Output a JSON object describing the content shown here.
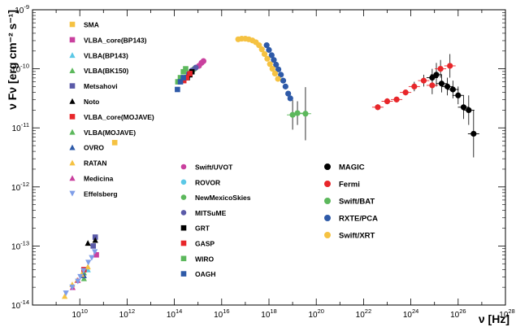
{
  "chart_data": {
    "type": "scatter",
    "xlabel": "ν [Hz]",
    "ylabel": "ν Fν [erg cm⁻² s⁻¹]",
    "xscale": "log",
    "yscale": "log",
    "xlim": [
      100000000.0,
      1e+28
    ],
    "ylim": [
      1e-14,
      1e-09
    ],
    "x_ticks": [
      "10^10",
      "10^12",
      "10^14",
      "10^16",
      "10^18",
      "10^20",
      "10^22",
      "10^24",
      "10^26",
      "10^28"
    ],
    "y_ticks": [
      "10^-14",
      "10^-13",
      "10^-12",
      "10^-11",
      "10^-10",
      "10^-9"
    ],
    "legend_left_placement": "top-left",
    "legend_mid_placement": "bottom-center",
    "legend_right_placement": "bottom-right",
    "series": [
      {
        "name": "SMA",
        "color": "#f5c242",
        "marker": "square",
        "points": [
          [
            300000000000.0,
            -11.25
          ]
        ]
      },
      {
        "name": "VLBA_core(BP143)",
        "color": "#c9409e",
        "marker": "square",
        "points": [
          [
            50000000000.0,
            -13.15
          ]
        ]
      },
      {
        "name": "VLBA(BP143)",
        "color": "#5bc8e6",
        "marker": "triangle-up",
        "points": [
          [
            22000000000.0,
            -13.4
          ]
        ]
      },
      {
        "name": "VLBA(BK150)",
        "color": "#5cb85c",
        "marker": "triangle-up",
        "points": [
          [
            15000000000.0,
            -13.45
          ]
        ]
      },
      {
        "name": "Metsahovi",
        "color": "#5a5aa8",
        "marker": "square",
        "points": [
          [
            37000000000.0,
            -13.0
          ],
          [
            45000000000.0,
            -12.85
          ]
        ]
      },
      {
        "name": "Noto",
        "color": "#000000",
        "marker": "triangle-up",
        "points": [
          [
            22000000000.0,
            -12.95
          ],
          [
            45000000000.0,
            -12.9
          ]
        ]
      },
      {
        "name": "VLBA_core(MOJAVE)",
        "color": "#e8262a",
        "marker": "square",
        "points": [
          [
            15000000000.0,
            -13.4
          ]
        ]
      },
      {
        "name": "VLBA(MOJAVE)",
        "color": "#5cb85c",
        "marker": "triangle-up",
        "points": [
          [
            15000000000.0,
            -13.55
          ]
        ]
      },
      {
        "name": "OVRO",
        "color": "#2e5aa8",
        "marker": "triangle-up",
        "points": [
          [
            15000000000.0,
            -13.5
          ]
        ]
      },
      {
        "name": "RATAN",
        "color": "#f5c242",
        "marker": "triangle-up",
        "points": [
          [
            2300000000.0,
            -13.85
          ],
          [
            4800000000.0,
            -13.65
          ],
          [
            7700000000.0,
            -13.58
          ],
          [
            12000000000.0,
            -13.48
          ],
          [
            22000000000.0,
            -13.35
          ]
        ]
      },
      {
        "name": "Medicina",
        "color": "#c9409e",
        "marker": "triangle-up",
        "points": [
          [
            5000000000.0,
            -13.7
          ],
          [
            8300000000.0,
            -13.58
          ]
        ]
      },
      {
        "name": "Effelsberg",
        "color": "#7f9ee8",
        "marker": "triangle-down",
        "points": [
          [
            2600000000.0,
            -13.8
          ],
          [
            4800000000.0,
            -13.7
          ],
          [
            8300000000.0,
            -13.6
          ],
          [
            10500000000.0,
            -13.52
          ],
          [
            14500000000.0,
            -13.42
          ],
          [
            23000000000.0,
            -13.28
          ],
          [
            32000000000.0,
            -13.2
          ],
          [
            43000000000.0,
            -13.1
          ]
        ]
      },
      {
        "name": "Swift/UVOT",
        "color": "#c9409e",
        "marker": "circle",
        "points": [
          [
            1100000000000000.0,
            -9.95
          ],
          [
            1400000000000000.0,
            -9.9
          ],
          [
            1700000000000000.0,
            -9.87
          ]
        ]
      },
      {
        "name": "ROVOR",
        "color": "#5bc8e6",
        "marker": "circle",
        "points": [
          [
            450000000000000.0,
            -10.1
          ]
        ]
      },
      {
        "name": "NewMexicoSkies",
        "color": "#5cb85c",
        "marker": "circle",
        "points": [
          [
            550000000000000.0,
            -10.05
          ],
          [
            700000000000000.0,
            -10.0
          ]
        ]
      },
      {
        "name": "MITSuME",
        "color": "#5a5aa8",
        "marker": "circle",
        "points": [
          [
            400000000000000.0,
            -10.08
          ],
          [
            550000000000000.0,
            -10.03
          ],
          [
            800000000000000.0,
            -9.98
          ]
        ]
      },
      {
        "name": "GRT",
        "color": "#000000",
        "marker": "square",
        "points": [
          [
            350000000000000.0,
            -10.15
          ],
          [
            450000000000000.0,
            -10.1
          ],
          [
            550000000000000.0,
            -10.05
          ]
        ]
      },
      {
        "name": "GASP",
        "color": "#e8262a",
        "marker": "square",
        "points": [
          [
            250000000000000.0,
            -10.2
          ],
          [
            330000000000000.0,
            -10.15
          ],
          [
            450000000000000.0,
            -10.08
          ]
        ]
      },
      {
        "name": "WIRO",
        "color": "#5cb85c",
        "marker": "square",
        "points": [
          [
            140000000000000.0,
            -10.22
          ],
          [
            180000000000000.0,
            -10.15
          ],
          [
            240000000000000.0,
            -10.05
          ],
          [
            300000000000000.0,
            -10.0
          ]
        ]
      },
      {
        "name": "OAGH",
        "color": "#2e5aa8",
        "marker": "square",
        "points": [
          [
            135000000000000.0,
            -10.35
          ],
          [
            180000000000000.0,
            -10.22
          ],
          [
            240000000000000.0,
            -10.15
          ]
        ]
      },
      {
        "name": "MAGIC",
        "color": "#000000",
        "marker": "circle",
        "points": [
          [
            8e+24,
            -10.15,
            0.15
          ],
          [
            1.2e+25,
            -10.1,
            0.2
          ],
          [
            2e+25,
            -10.25,
            0.15
          ],
          [
            3.5e+25,
            -10.3,
            0.15
          ],
          [
            6e+25,
            -10.35,
            0.15
          ],
          [
            1e+26,
            -10.45,
            0.15
          ],
          [
            1.7e+26,
            -10.65,
            0.2
          ],
          [
            2.8e+26,
            -10.7,
            0.25
          ],
          [
            4.5e+26,
            -11.1,
            0.4
          ]
        ]
      },
      {
        "name": "Fermi",
        "color": "#e8262a",
        "marker": "circle",
        "points": [
          [
            4e+22,
            -10.65,
            0.05
          ],
          [
            1e+23,
            -10.55,
            0.05
          ],
          [
            2.5e+23,
            -10.52,
            0.05
          ],
          [
            6e+23,
            -10.4,
            0.05
          ],
          [
            1.4e+24,
            -10.3,
            0.08
          ],
          [
            3.5e+24,
            -10.2,
            0.1
          ],
          [
            8e+24,
            -10.28,
            0.15
          ],
          [
            1.8e+25,
            -10.0,
            0.15
          ],
          [
            4.5e+25,
            -9.95,
            0.2
          ]
        ]
      },
      {
        "name": "Swift/BAT",
        "color": "#5cb85c",
        "marker": "circle",
        "points": [
          [
            1e+19,
            -10.78,
            0.25
          ],
          [
            1.6e+19,
            -10.75,
            0.2
          ],
          [
            3.5e+19,
            -10.76,
            0.45
          ]
        ]
      },
      {
        "name": "RXTE/PCA",
        "color": "#2e5aa8",
        "marker": "circle",
        "points": [
          [
            8e+17,
            -9.6
          ],
          [
            1e+18,
            -9.68
          ],
          [
            1.3e+18,
            -9.77
          ],
          [
            1.6e+18,
            -9.85
          ],
          [
            2e+18,
            -9.93
          ],
          [
            2.5e+18,
            -10.01
          ],
          [
            3.2e+18,
            -10.1
          ],
          [
            4e+18,
            -10.2
          ],
          [
            5e+18,
            -10.3
          ],
          [
            6.5e+18,
            -10.42
          ],
          [
            8e+18,
            -10.5
          ]
        ]
      },
      {
        "name": "Swift/XRT",
        "color": "#f5c242",
        "marker": "circle",
        "points": [
          [
            5e+16,
            -9.5
          ],
          [
            7e+16,
            -9.49
          ],
          [
            1e+17,
            -9.49
          ],
          [
            1.4e+17,
            -9.5
          ],
          [
            2e+17,
            -9.52
          ],
          [
            2.8e+17,
            -9.55
          ],
          [
            3.8e+17,
            -9.6
          ],
          [
            5e+17,
            -9.67
          ],
          [
            6.5e+17,
            -9.75
          ],
          [
            8.5e+17,
            -9.83
          ],
          [
            1.1e+18,
            -9.92
          ],
          [
            1.4e+18,
            -10.0
          ],
          [
            1.8e+18,
            -10.08
          ],
          [
            2.4e+18,
            -10.17
          ]
        ]
      }
    ]
  }
}
